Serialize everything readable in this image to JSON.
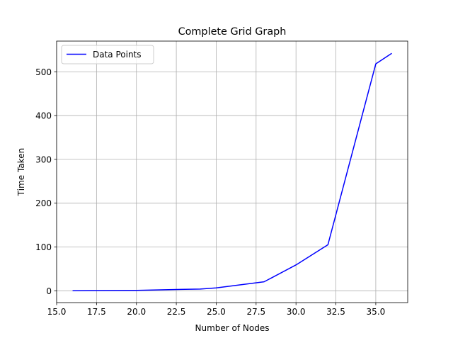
{
  "chart_data": {
    "type": "line",
    "title": "Complete Grid Graph",
    "xlabel": "Number of Nodes",
    "ylabel": "Time Taken",
    "xlim": [
      15.0,
      37.0
    ],
    "ylim": [
      -27,
      570
    ],
    "xticks": [
      15.0,
      17.5,
      20.0,
      22.5,
      25.0,
      27.5,
      30.0,
      32.5,
      35.0
    ],
    "xtick_labels": [
      "15.0",
      "17.5",
      "20.0",
      "22.5",
      "25.0",
      "27.5",
      "30.0",
      "32.5",
      "35.0"
    ],
    "yticks": [
      0,
      100,
      200,
      300,
      400,
      500
    ],
    "ytick_labels": [
      "0",
      "100",
      "200",
      "300",
      "400",
      "500"
    ],
    "grid": true,
    "legend_position": "upper-left",
    "series": [
      {
        "name": "Data Points",
        "color": "#0000ff",
        "x": [
          16,
          20,
          24,
          25,
          28,
          30,
          32,
          35,
          36
        ],
        "y": [
          0.2,
          1,
          4,
          6.5,
          20.5,
          59,
          105,
          518,
          542
        ]
      }
    ]
  }
}
